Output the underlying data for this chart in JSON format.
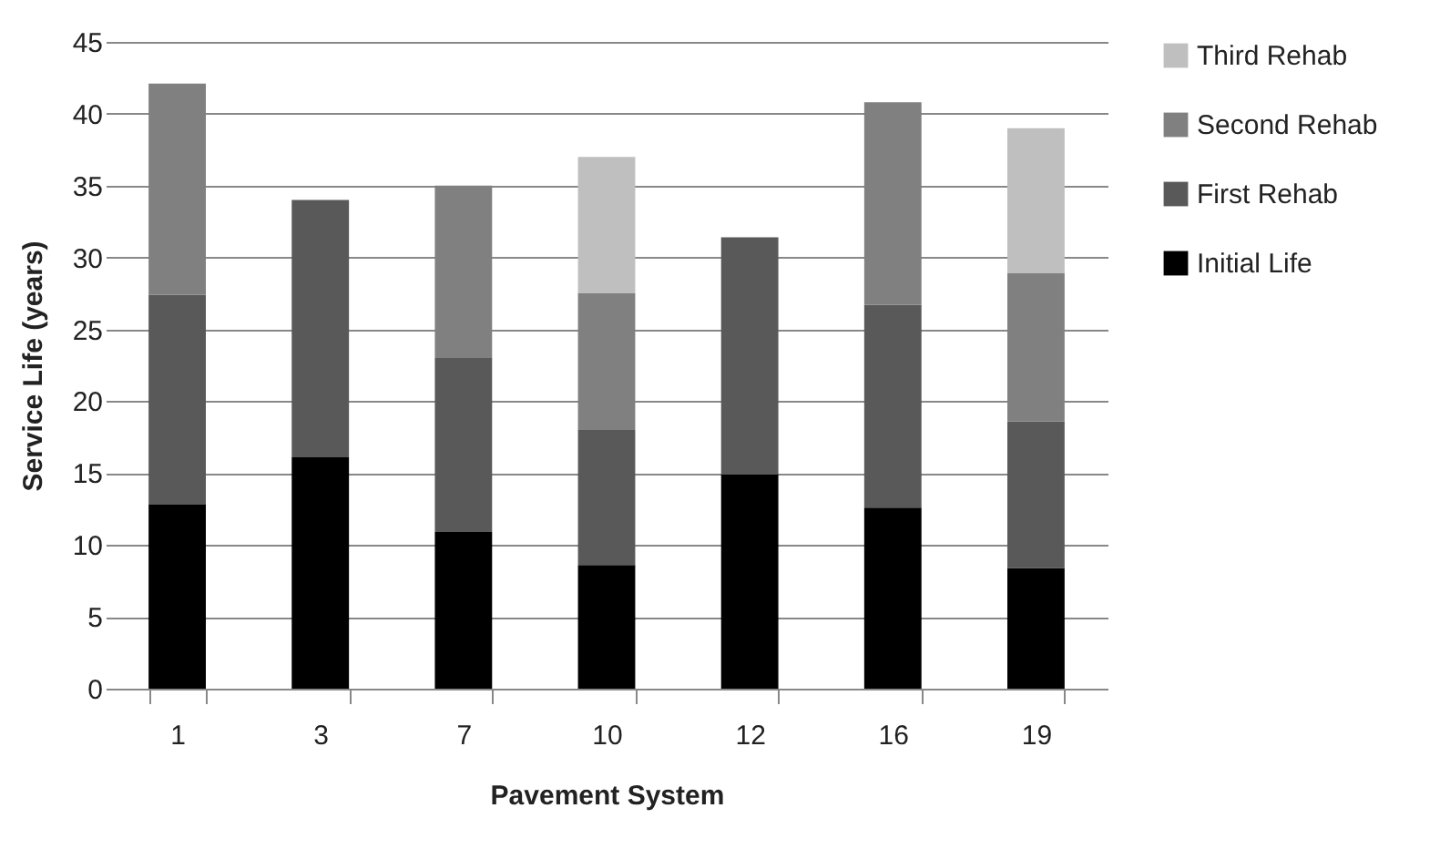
{
  "chart_data": {
    "type": "bar",
    "stacked": true,
    "xlabel": "Pavement System",
    "ylabel": "Service Life (years)",
    "categories": [
      "1",
      "3",
      "7",
      "10",
      "12",
      "16",
      "19"
    ],
    "series": [
      {
        "name": "Initial Life",
        "color": "#000000",
        "values": [
          12.8,
          16.1,
          10.9,
          8.6,
          14.9,
          12.6,
          8.4
        ]
      },
      {
        "name": "First Rehab",
        "color": "#595959",
        "values": [
          14.6,
          17.9,
          12.1,
          9.4,
          16.5,
          14.1,
          10.2
        ]
      },
      {
        "name": "Second Rehab",
        "color": "#808080",
        "values": [
          14.7,
          null,
          12.0,
          9.5,
          null,
          14.1,
          10.3
        ]
      },
      {
        "name": "Third Rehab",
        "color": "#bfbfbf",
        "values": [
          null,
          null,
          null,
          9.5,
          null,
          null,
          10.1
        ]
      }
    ],
    "ylim": [
      0,
      45
    ],
    "yticks": [
      0,
      5,
      10,
      15,
      20,
      25,
      30,
      35,
      40,
      45
    ],
    "grid": "y",
    "legend": "right"
  }
}
